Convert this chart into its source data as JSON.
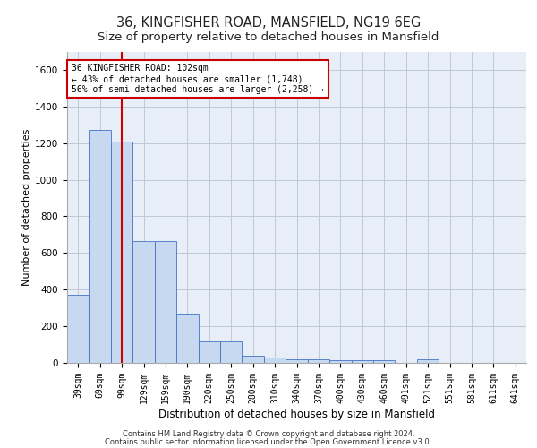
{
  "title1": "36, KINGFISHER ROAD, MANSFIELD, NG19 6EG",
  "title2": "Size of property relative to detached houses in Mansfield",
  "xlabel": "Distribution of detached houses by size in Mansfield",
  "ylabel": "Number of detached properties",
  "footer1": "Contains HM Land Registry data © Crown copyright and database right 2024.",
  "footer2": "Contains public sector information licensed under the Open Government Licence v3.0.",
  "annotation_line1": "36 KINGFISHER ROAD: 102sqm",
  "annotation_line2": "← 43% of detached houses are smaller (1,748)",
  "annotation_line3": "56% of semi-detached houses are larger (2,258) →",
  "categories": [
    "39sqm",
    "69sqm",
    "99sqm",
    "129sqm",
    "159sqm",
    "190sqm",
    "220sqm",
    "250sqm",
    "280sqm",
    "310sqm",
    "340sqm",
    "370sqm",
    "400sqm",
    "430sqm",
    "460sqm",
    "491sqm",
    "521sqm",
    "551sqm",
    "581sqm",
    "611sqm",
    "641sqm"
  ],
  "values": [
    370,
    1270,
    1210,
    665,
    665,
    265,
    115,
    115,
    40,
    30,
    20,
    20,
    15,
    15,
    15,
    0,
    20,
    0,
    0,
    0,
    0
  ],
  "bar_color": "#c6d9f1",
  "bar_edge_color": "#4472c4",
  "highlight_color": "#cc0000",
  "ylim": [
    0,
    1700
  ],
  "yticks": [
    0,
    200,
    400,
    600,
    800,
    1000,
    1200,
    1400,
    1600
  ],
  "grid_color": "#c0c8d8",
  "bg_color": "#e8eef8",
  "annotation_box_color": "#cc0000",
  "title1_fontsize": 10.5,
  "title2_fontsize": 9.5,
  "axis_fontsize": 8,
  "tick_fontsize": 7.5,
  "footer_fontsize": 6,
  "ann_fontsize": 7
}
